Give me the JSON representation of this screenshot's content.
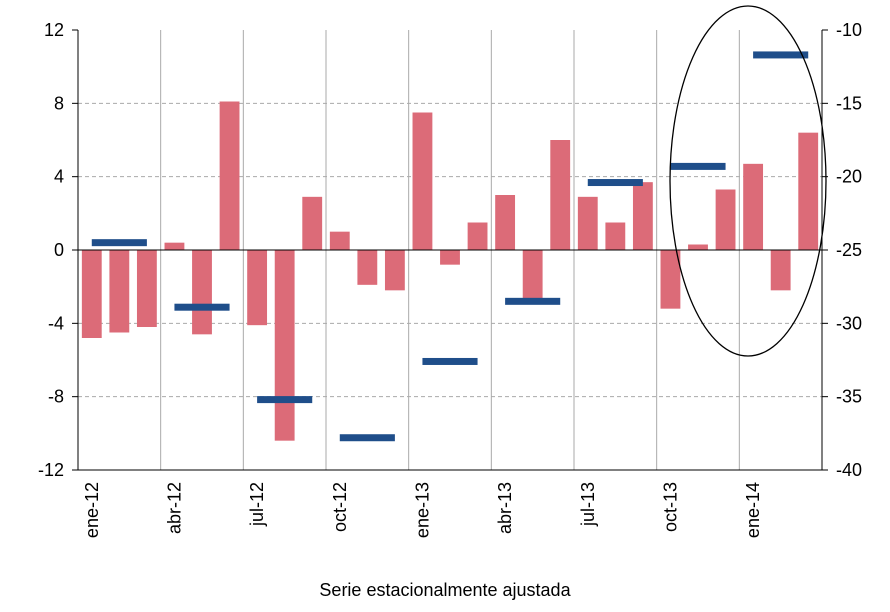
{
  "chart_data": {
    "type": "bar",
    "x_label": "Serie estacionalmente ajustada",
    "categories": [
      "ene-12",
      null,
      null,
      "abr-12",
      null,
      null,
      "jul-12",
      null,
      null,
      "oct-12",
      null,
      null,
      "ene-13",
      null,
      null,
      "abr-13",
      null,
      null,
      "jul-13",
      null,
      null,
      "oct-13",
      null,
      null,
      "ene-14",
      null,
      null
    ],
    "series": [
      {
        "color": "#dc6b78",
        "values": [
          -4.8,
          -4.5,
          -4.2,
          0.4,
          -4.6,
          8.1,
          -4.1,
          -10.4,
          2.9,
          1.0,
          -1.9,
          -2.2,
          7.5,
          -0.8,
          1.5,
          3.0,
          -2.9,
          6.0,
          2.9,
          1.5,
          3.7,
          -3.2,
          0.3,
          3.3,
          4.7,
          -2.2,
          6.4
        ]
      },
      {
        "color": "#1f4e8a",
        "axis": "y2",
        "values": [
          null,
          -24.5,
          null,
          null,
          -28.9,
          null,
          null,
          -35.2,
          null,
          null,
          -37.8,
          null,
          null,
          -32.6,
          null,
          null,
          -28.5,
          null,
          null,
          -20.4,
          null,
          null,
          -19.3,
          null,
          null,
          -11.7,
          null
        ]
      }
    ],
    "ylim": [
      -12,
      12
    ],
    "yticks": [
      -12,
      -8,
      -4,
      0,
      4,
      8,
      12
    ],
    "y2lim": [
      -40,
      -10
    ],
    "y2ticks": [
      -40,
      -35,
      -30,
      -25,
      -20,
      -15,
      -10
    ],
    "grid": true
  }
}
